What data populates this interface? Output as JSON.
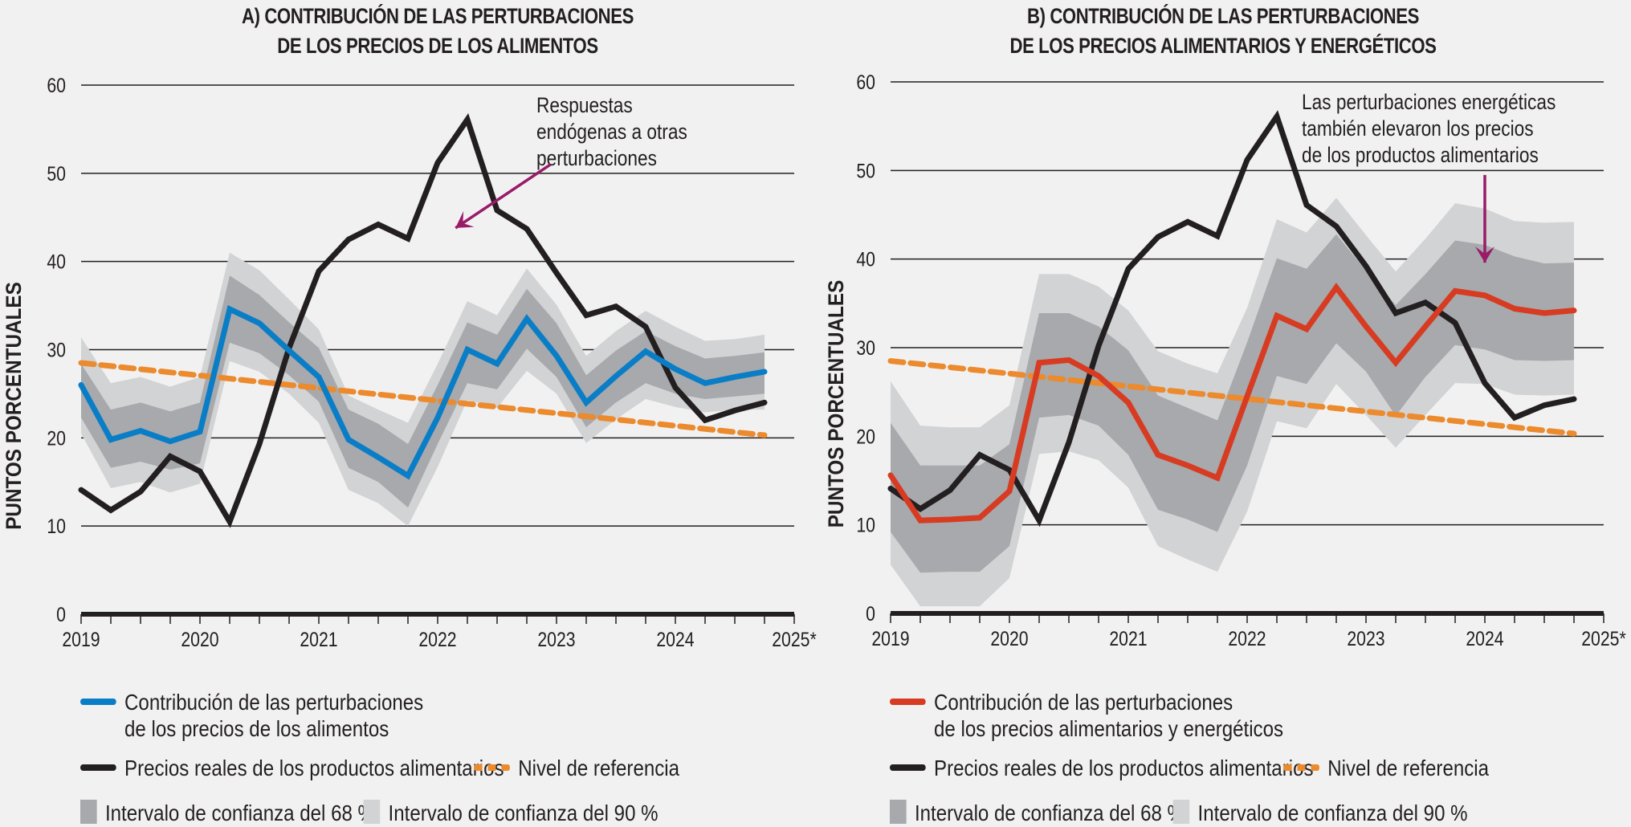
{
  "colors": {
    "food_contribution": "#0a7dc7",
    "food_energy_contribution": "#d73b21",
    "real_food_prices": "#231f20",
    "reference_level": "#ec8a2e",
    "ci68": "#a7a9ac",
    "ci90": "#d1d3d4",
    "annotation_arrow": "#9a1b68",
    "grid": "#231f20"
  },
  "legend_labels": {
    "food_contribution_line1": "Contribución de las perturbaciones",
    "food_contribution_line2": "de los precios de los alimentos",
    "food_energy_contribution_line1": "Contribución de las perturbaciones",
    "food_energy_contribution_line2": "de los precios alimentarios y energéticos",
    "real_food_prices": "Precios reales de los productos alimentarios",
    "reference_level": "Nivel de referencia",
    "ci68": "Intervalo de confianza del 68 %",
    "ci90": "Intervalo de confianza del 90 %"
  },
  "chart_data": [
    {
      "id": "A",
      "type": "line",
      "title_line1": "A) CONTRIBUCIÓN DE LAS PERTURBACIONES",
      "title_line2": "DE LOS PRECIOS DE LOS ALIMENTOS",
      "ylabel": "PUNTOS PORCENTUALES",
      "xlabel": "",
      "ylim": [
        0,
        60
      ],
      "yticks": [
        0,
        10,
        20,
        30,
        40,
        50,
        60
      ],
      "xlim": [
        2019,
        2025
      ],
      "xticks": [
        "2019",
        "2020",
        "2021",
        "2022",
        "2023",
        "2024",
        "2025*"
      ],
      "grid": true,
      "legend_position": "bottom",
      "x": [
        2019.0,
        2019.25,
        2019.5,
        2019.75,
        2020.0,
        2020.25,
        2020.5,
        2020.75,
        2021.0,
        2021.25,
        2021.5,
        2021.75,
        2022.0,
        2022.25,
        2022.5,
        2022.75,
        2023.0,
        2023.25,
        2023.5,
        2023.75,
        2024.0,
        2024.25,
        2024.5,
        2024.75
      ],
      "series": [
        {
          "name": "Contribución de las perturbaciones de los precios de los alimentos",
          "key": "contribution",
          "values": [
            26.0,
            19.8,
            20.8,
            19.6,
            20.7,
            34.6,
            33.0,
            29.9,
            26.9,
            19.8,
            17.8,
            15.7,
            22.3,
            30.0,
            28.4,
            33.5,
            29.3,
            24.0,
            27.0,
            29.8,
            27.8,
            26.2,
            26.9,
            27.5
          ]
        },
        {
          "name": "Precios reales de los productos alimentarios",
          "key": "real_prices",
          "values": [
            14.1,
            11.8,
            13.9,
            17.9,
            16.2,
            10.5,
            19.3,
            30.2,
            38.9,
            42.5,
            44.2,
            42.6,
            51.2,
            56.1,
            45.8,
            43.7,
            38.7,
            33.9,
            34.9,
            32.6,
            25.7,
            22.0,
            23.1,
            24.0
          ]
        },
        {
          "name": "Nivel de referencia",
          "key": "reference",
          "style": "dashed",
          "x": [
            2019.0,
            2024.75
          ],
          "values": [
            28.5,
            20.3
          ]
        }
      ],
      "bands": [
        {
          "name": "Intervalo de confianza del 90 %",
          "key": "ci90",
          "upper": [
            31.4,
            26.2,
            26.9,
            25.8,
            26.9,
            41.0,
            39.0,
            35.7,
            32.3,
            24.8,
            23.2,
            21.7,
            28.4,
            35.5,
            33.9,
            39.2,
            35.1,
            29.3,
            32.1,
            34.4,
            32.6,
            31.0,
            31.2,
            31.7
          ],
          "lower": [
            20.5,
            14.3,
            15.0,
            13.8,
            14.8,
            28.7,
            27.5,
            25.0,
            21.7,
            14.1,
            12.6,
            10.0,
            16.7,
            24.3,
            23.4,
            27.6,
            25.0,
            19.4,
            22.1,
            24.4,
            23.5,
            22.9,
            23.2,
            23.2
          ]
        },
        {
          "name": "Intervalo de confianza del 68 %",
          "key": "ci68",
          "upper": [
            28.4,
            23.2,
            24.0,
            23.0,
            24.0,
            38.4,
            36.2,
            33.1,
            30.2,
            23.2,
            21.6,
            19.3,
            26.0,
            33.1,
            31.7,
            36.9,
            33.0,
            27.1,
            29.9,
            32.1,
            30.4,
            29.0,
            29.3,
            29.7
          ],
          "lower": [
            22.3,
            16.6,
            17.3,
            16.4,
            17.1,
            30.8,
            29.6,
            27.1,
            24.1,
            16.6,
            15.0,
            12.1,
            19.3,
            26.2,
            25.5,
            30.1,
            26.9,
            21.2,
            24.0,
            26.2,
            25.0,
            24.4,
            24.7,
            25.0
          ]
        }
      ],
      "annotation": {
        "lines": [
          "Respuestas",
          "endógenas a otras",
          "perturbaciones"
        ],
        "arrow_from": [
          2022.95,
          51.0
        ],
        "arrow_to": [
          2022.15,
          43.8
        ]
      }
    },
    {
      "id": "B",
      "type": "line",
      "title_line1": "B) CONTRIBUCIÓN DE LAS PERTURBACIONES",
      "title_line2": "DE LOS PRECIOS ALIMENTARIOS Y ENERGÉTICOS",
      "ylabel": "PUNTOS PORCENTUALES",
      "xlabel": "",
      "ylim": [
        0,
        60
      ],
      "yticks": [
        0,
        10,
        20,
        30,
        40,
        50,
        60
      ],
      "xlim": [
        2019,
        2025
      ],
      "xticks": [
        "2019",
        "2020",
        "2021",
        "2022",
        "2023",
        "2024",
        "2025*"
      ],
      "grid": true,
      "legend_position": "bottom",
      "x": [
        2019.0,
        2019.25,
        2019.5,
        2019.75,
        2020.0,
        2020.25,
        2020.5,
        2020.75,
        2021.0,
        2021.25,
        2021.5,
        2021.75,
        2022.0,
        2022.25,
        2022.5,
        2022.75,
        2023.0,
        2023.25,
        2023.5,
        2023.75,
        2024.0,
        2024.25,
        2024.5,
        2024.75
      ],
      "series": [
        {
          "name": "Contribución de las perturbaciones de los precios alimentarios y energéticos",
          "key": "contribution",
          "values": [
            15.6,
            10.5,
            10.6,
            10.8,
            13.8,
            28.3,
            28.6,
            26.8,
            23.8,
            17.9,
            16.7,
            15.3,
            24.5,
            33.6,
            32.1,
            36.8,
            32.4,
            28.3,
            32.4,
            36.4,
            35.9,
            34.4,
            33.9,
            34.2
          ]
        },
        {
          "name": "Precios reales de los productos alimentarios",
          "key": "real_prices",
          "values": [
            14.1,
            11.8,
            13.9,
            17.9,
            16.2,
            10.5,
            19.3,
            30.2,
            38.9,
            42.5,
            44.2,
            42.6,
            51.2,
            56.1,
            46.1,
            43.7,
            39.2,
            33.9,
            35.1,
            32.8,
            26.0,
            22.1,
            23.5,
            24.2
          ]
        },
        {
          "name": "Nivel de referencia",
          "key": "reference",
          "style": "dashed",
          "x": [
            2019.0,
            2024.75
          ],
          "values": [
            28.5,
            20.3
          ]
        }
      ],
      "bands": [
        {
          "name": "Intervalo de confianza del 90 %",
          "key": "ci90",
          "upper": [
            26.2,
            21.2,
            21.0,
            21.0,
            23.5,
            38.3,
            38.3,
            36.9,
            34.2,
            29.6,
            28.2,
            27.1,
            34.5,
            44.5,
            43.0,
            46.9,
            42.7,
            38.6,
            42.3,
            46.3,
            45.7,
            44.3,
            44.1,
            44.2
          ],
          "lower": [
            5.5,
            0.8,
            0.8,
            0.8,
            4.0,
            18.0,
            18.3,
            17.3,
            14.2,
            7.6,
            6.1,
            4.7,
            11.5,
            21.7,
            20.9,
            25.9,
            22.4,
            18.7,
            22.4,
            26.0,
            25.9,
            24.7,
            24.6,
            24.7
          ]
        },
        {
          "name": "Intervalo de confianza del 68 %",
          "key": "ci68",
          "upper": [
            21.5,
            16.7,
            16.7,
            16.7,
            19.1,
            33.9,
            33.9,
            32.4,
            29.7,
            24.6,
            23.2,
            21.8,
            30.6,
            40.1,
            38.9,
            42.8,
            38.7,
            34.8,
            38.3,
            42.1,
            41.6,
            40.3,
            39.5,
            39.6
          ],
          "lower": [
            9.2,
            4.6,
            4.7,
            4.7,
            7.6,
            22.1,
            22.4,
            21.2,
            17.9,
            11.7,
            10.6,
            9.2,
            16.7,
            26.8,
            25.9,
            30.5,
            27.3,
            22.3,
            26.7,
            30.3,
            29.8,
            28.6,
            28.5,
            28.6
          ]
        }
      ],
      "annotation": {
        "lines": [
          "Las perturbaciones energéticas",
          "también elevaron los precios",
          "de los productos alimentarios"
        ],
        "arrow_from": [
          2024.0,
          49.5
        ],
        "arrow_to": [
          2024.0,
          39.6
        ]
      }
    }
  ]
}
